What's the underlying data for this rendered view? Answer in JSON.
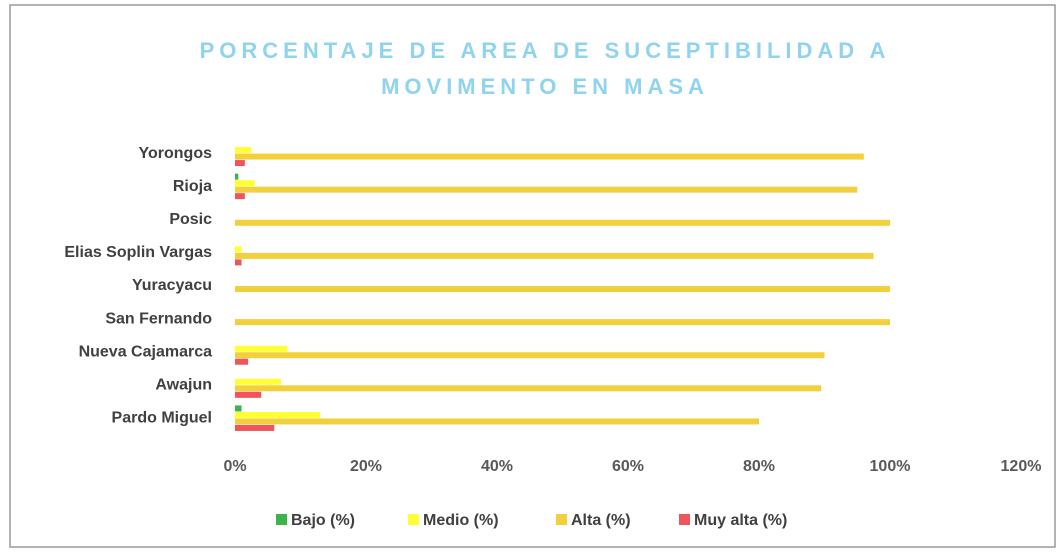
{
  "chart_data": {
    "type": "hbar",
    "title": [
      "PORCENTAJE DE AREA DE SUCEPTIBILIDAD A",
      "MOVIMENTO EN MASA"
    ],
    "categories": [
      "Yorongos",
      "Rioja",
      "Posic",
      "Elias Soplin Vargas",
      "Yuracyacu",
      "San Fernando",
      "Nueva Cajamarca",
      "Awajun",
      "Pardo Miguel"
    ],
    "series": [
      {
        "name": "Bajo (%)",
        "color": "#3cb44b",
        "values": [
          0,
          0.5,
          0,
          0,
          0,
          0,
          0,
          0,
          1
        ]
      },
      {
        "name": "Medio (%)",
        "color": "#ffff33",
        "values": [
          2.5,
          3,
          0,
          1,
          0,
          0,
          8,
          7,
          13
        ]
      },
      {
        "name": "Alta (%)",
        "color": "#f2d03c",
        "values": [
          96,
          95,
          100,
          97.5,
          100,
          100,
          90,
          89.5,
          80
        ]
      },
      {
        "name": "Muy alta (%)",
        "color": "#f0545c",
        "values": [
          1.5,
          1.5,
          0,
          1,
          0,
          0,
          2,
          4,
          6
        ]
      }
    ],
    "xlim": [
      0,
      120
    ],
    "xticks": [
      {
        "value": 0,
        "label": "0%"
      },
      {
        "value": 20,
        "label": "20%"
      },
      {
        "value": 40,
        "label": "40%"
      },
      {
        "value": 60,
        "label": "60%"
      },
      {
        "value": 80,
        "label": "80%"
      },
      {
        "value": 100,
        "label": "100%"
      },
      {
        "value": 120,
        "label": "120%"
      }
    ],
    "grid": false,
    "legend": "bottom"
  }
}
